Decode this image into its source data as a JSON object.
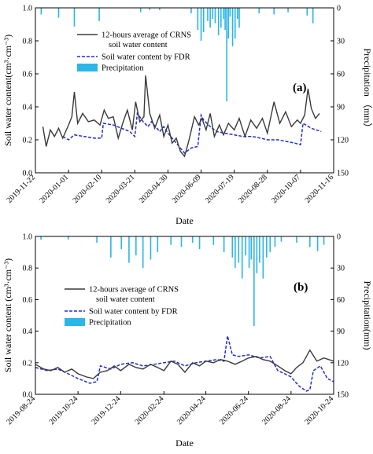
{
  "chart_data": [
    {
      "type": "line",
      "panel_label": "(a)",
      "xlabel": "Date",
      "ylabel": "Soil water content(cm³·cm⁻³)",
      "y2label": "Precipitation （mm）",
      "ylim": [
        0.0,
        1.0
      ],
      "y2lim": [
        0,
        150
      ],
      "y2_inverted": true,
      "xlim": [
        "2019-11-22",
        "2020-11-16"
      ],
      "xticks": [
        "2019-11-22",
        "2020-01-01",
        "2020-02-10",
        "2020-03-21",
        "2020-04-30",
        "2020-06-09",
        "2020-07-19",
        "2020-08-28",
        "2020-10-07",
        "2020-11-16"
      ],
      "yticks": [
        "0.0",
        "0.2",
        "0.4",
        "0.6",
        "0.8",
        "1.0"
      ],
      "y2ticks": [
        "0",
        "30",
        "60",
        "90",
        "120",
        "150"
      ],
      "legend_position": "top-left",
      "legend": [
        {
          "label": "12-hours average of CRNS",
          "label2": "soil water content",
          "style": "line",
          "color": "#3a3a3a"
        },
        {
          "label": "Soil water content by FDR",
          "style": "dashed",
          "color": "#1f2fd0"
        },
        {
          "label": "Precipitation",
          "style": "bar",
          "color": "#2ab6e6"
        }
      ],
      "series": [
        {
          "name": "12-hours average of CRNS soil water content",
          "type": "line",
          "color": "#3a3a3a",
          "x": [
            "2019-12-01",
            "2019-12-05",
            "2019-12-10",
            "2019-12-15",
            "2019-12-20",
            "2019-12-25",
            "2020-01-01",
            "2020-01-05",
            "2020-01-08",
            "2020-01-12",
            "2020-01-18",
            "2020-01-25",
            "2020-02-01",
            "2020-02-08",
            "2020-02-13",
            "2020-02-18",
            "2020-02-24",
            "2020-03-01",
            "2020-03-07",
            "2020-03-12",
            "2020-03-18",
            "2020-03-22",
            "2020-03-27",
            "2020-04-01",
            "2020-04-03",
            "2020-04-08",
            "2020-04-14",
            "2020-04-20",
            "2020-04-25",
            "2020-04-30",
            "2020-05-05",
            "2020-05-10",
            "2020-05-15",
            "2020-05-20",
            "2020-05-25",
            "2020-06-01",
            "2020-06-06",
            "2020-06-10",
            "2020-06-15",
            "2020-06-20",
            "2020-06-25",
            "2020-07-01",
            "2020-07-06",
            "2020-07-12",
            "2020-07-19",
            "2020-07-25",
            "2020-08-01",
            "2020-08-08",
            "2020-08-15",
            "2020-08-22",
            "2020-08-28",
            "2020-09-05",
            "2020-09-12",
            "2020-09-19",
            "2020-09-26",
            "2020-10-03",
            "2020-10-07",
            "2020-10-12",
            "2020-10-16",
            "2020-10-20",
            "2020-10-25",
            "2020-10-30"
          ],
          "y": [
            0.28,
            0.16,
            0.26,
            0.22,
            0.27,
            0.21,
            0.29,
            0.34,
            0.49,
            0.3,
            0.36,
            0.31,
            0.32,
            0.29,
            0.38,
            0.33,
            0.34,
            0.21,
            0.31,
            0.38,
            0.26,
            0.43,
            0.31,
            0.34,
            0.59,
            0.36,
            0.27,
            0.35,
            0.22,
            0.29,
            0.18,
            0.21,
            0.13,
            0.1,
            0.19,
            0.34,
            0.29,
            0.33,
            0.26,
            0.36,
            0.22,
            0.29,
            0.23,
            0.3,
            0.26,
            0.33,
            0.22,
            0.32,
            0.27,
            0.33,
            0.24,
            0.43,
            0.3,
            0.37,
            0.28,
            0.32,
            0.3,
            0.35,
            0.51,
            0.39,
            0.33,
            0.36
          ]
        },
        {
          "name": "Soil water content by FDR",
          "type": "dashed",
          "color": "#1f2fd0",
          "x": [
            "2019-12-25",
            "2020-01-01",
            "2020-01-08",
            "2020-01-20",
            "2020-02-01",
            "2020-02-10",
            "2020-02-12",
            "2020-02-24",
            "2020-03-05",
            "2020-03-15",
            "2020-03-21",
            "2020-03-24",
            "2020-03-31",
            "2020-04-06",
            "2020-04-10",
            "2020-04-20",
            "2020-04-25",
            "2020-04-30",
            "2020-05-10",
            "2020-05-20",
            "2020-05-28",
            "2020-06-05",
            "2020-06-09",
            "2020-06-12",
            "2020-06-20",
            "2020-06-28",
            "2020-07-08",
            "2020-07-19",
            "2020-07-30",
            "2020-08-10",
            "2020-08-20",
            "2020-08-28",
            "2020-09-10",
            "2020-09-20",
            "2020-09-30",
            "2020-10-07",
            "2020-10-10",
            "2020-10-20",
            "2020-11-01"
          ],
          "y": [
            0.22,
            0.2,
            0.23,
            0.22,
            0.21,
            0.21,
            0.3,
            0.29,
            0.27,
            0.25,
            0.22,
            0.36,
            0.31,
            0.28,
            0.31,
            0.25,
            0.28,
            0.24,
            0.18,
            0.12,
            0.15,
            0.16,
            0.35,
            0.32,
            0.28,
            0.25,
            0.24,
            0.23,
            0.22,
            0.22,
            0.21,
            0.2,
            0.2,
            0.19,
            0.18,
            0.17,
            0.3,
            0.27,
            0.25
          ]
        },
        {
          "name": "Precipitation",
          "type": "bar",
          "color": "#2ab6e6",
          "x": [
            "2019-11-29",
            "2019-12-20",
            "2020-01-08",
            "2020-02-07",
            "2020-03-28",
            "2020-04-08",
            "2020-04-20",
            "2020-05-28",
            "2020-06-05",
            "2020-06-09",
            "2020-06-12",
            "2020-06-17",
            "2020-06-20",
            "2020-06-23",
            "2020-06-26",
            "2020-06-30",
            "2020-07-03",
            "2020-07-06",
            "2020-07-08",
            "2020-07-10",
            "2020-07-12",
            "2020-07-14",
            "2020-07-17",
            "2020-07-20",
            "2020-07-23",
            "2020-07-25",
            "2020-08-18",
            "2020-09-05",
            "2020-09-22",
            "2020-10-15",
            "2020-10-22"
          ],
          "y": [
            6,
            9,
            17,
            12,
            4,
            2,
            2,
            5,
            20,
            30,
            22,
            12,
            18,
            10,
            14,
            25,
            18,
            10,
            20,
            85,
            28,
            8,
            35,
            28,
            10,
            18,
            5,
            6,
            4,
            7,
            14
          ]
        }
      ]
    },
    {
      "type": "line",
      "panel_label": "(b)",
      "xlabel": "Date",
      "ylabel": "Soil water content (cm³·cm⁻³)",
      "y2label": "Precipitation(mm)",
      "ylim": [
        0.0,
        1.0
      ],
      "y2lim": [
        0,
        150
      ],
      "y2_inverted": true,
      "xlim": [
        "2019-08-24",
        "2020-10-24"
      ],
      "xticks": [
        "2019-08-24",
        "2019-10-24",
        "2019-12-24",
        "2020-02-24",
        "2020-04-24",
        "2020-06-24",
        "2020-08-24",
        "2020-10-24"
      ],
      "yticks": [
        "0.0",
        "0.2",
        "0.4",
        "0.6",
        "0.8",
        "1.0"
      ],
      "y2ticks": [
        "0",
        "30",
        "60",
        "90",
        "120",
        "150"
      ],
      "legend_position": "center-left",
      "legend": [
        {
          "label": "12-hours average of CRNS",
          "label2": "soil water content",
          "style": "line",
          "color": "#3a3a3a"
        },
        {
          "label": "Soil water content by FDR",
          "style": "dashed",
          "color": "#1f2fd0"
        },
        {
          "label": "Precipitation",
          "style": "bar",
          "color": "#2ab6e6"
        }
      ],
      "series": [
        {
          "name": "12-hours average of CRNS soil water content",
          "type": "line",
          "color": "#3a3a3a",
          "x": [
            "2019-08-24",
            "2019-09-05",
            "2019-09-15",
            "2019-09-25",
            "2019-10-05",
            "2019-10-15",
            "2019-10-24",
            "2019-11-05",
            "2019-11-15",
            "2019-11-25",
            "2019-12-05",
            "2019-12-15",
            "2019-12-24",
            "2020-01-05",
            "2020-01-15",
            "2020-01-25",
            "2020-02-05",
            "2020-02-15",
            "2020-02-24",
            "2020-03-05",
            "2020-03-15",
            "2020-03-25",
            "2020-04-05",
            "2020-04-15",
            "2020-04-24",
            "2020-05-05",
            "2020-05-15",
            "2020-05-25",
            "2020-06-05",
            "2020-06-15",
            "2020-06-24",
            "2020-07-05",
            "2020-07-15",
            "2020-07-25",
            "2020-08-05",
            "2020-08-15",
            "2020-08-24",
            "2020-09-01",
            "2020-09-10",
            "2020-09-20",
            "2020-09-30",
            "2020-10-10",
            "2020-10-24"
          ],
          "y": [
            0.19,
            0.16,
            0.15,
            0.17,
            0.14,
            0.16,
            0.13,
            0.11,
            0.1,
            0.14,
            0.15,
            0.18,
            0.15,
            0.19,
            0.17,
            0.16,
            0.19,
            0.17,
            0.15,
            0.21,
            0.19,
            0.14,
            0.2,
            0.18,
            0.21,
            0.2,
            0.22,
            0.21,
            0.19,
            0.21,
            0.23,
            0.24,
            0.22,
            0.21,
            0.18,
            0.15,
            0.13,
            0.17,
            0.2,
            0.28,
            0.21,
            0.23,
            0.21
          ]
        },
        {
          "name": "Soil water content by FDR",
          "type": "dashed",
          "color": "#1f2fd0",
          "x": [
            "2019-08-24",
            "2019-09-10",
            "2019-09-25",
            "2019-10-10",
            "2019-10-24",
            "2019-11-10",
            "2019-11-20",
            "2019-11-25",
            "2019-12-10",
            "2019-12-24",
            "2020-01-10",
            "2020-01-25",
            "2020-02-10",
            "2020-02-24",
            "2020-03-10",
            "2020-03-25",
            "2020-04-10",
            "2020-04-24",
            "2020-05-10",
            "2020-05-20",
            "2020-05-25",
            "2020-06-01",
            "2020-06-10",
            "2020-06-24",
            "2020-07-10",
            "2020-07-25",
            "2020-08-05",
            "2020-08-15",
            "2020-08-24",
            "2020-09-05",
            "2020-09-15",
            "2020-09-20",
            "2020-09-25",
            "2020-10-05",
            "2020-10-15",
            "2020-10-24"
          ],
          "y": [
            0.17,
            0.15,
            0.16,
            0.13,
            0.1,
            0.07,
            0.08,
            0.18,
            0.16,
            0.19,
            0.2,
            0.18,
            0.19,
            0.2,
            0.21,
            0.18,
            0.2,
            0.21,
            0.22,
            0.21,
            0.37,
            0.25,
            0.24,
            0.25,
            0.23,
            0.24,
            0.15,
            0.13,
            0.11,
            0.05,
            0.02,
            0.03,
            0.15,
            0.18,
            0.1,
            0.08
          ]
        },
        {
          "name": "Precipitation",
          "type": "bar",
          "color": "#2ab6e6",
          "x": [
            "2019-09-01",
            "2019-10-10",
            "2019-11-20",
            "2019-12-10",
            "2019-12-25",
            "2020-01-05",
            "2020-01-15",
            "2020-01-25",
            "2020-02-05",
            "2020-02-15",
            "2020-03-05",
            "2020-03-20",
            "2020-04-05",
            "2020-04-15",
            "2020-05-05",
            "2020-05-20",
            "2020-06-01",
            "2020-06-05",
            "2020-06-10",
            "2020-06-15",
            "2020-06-20",
            "2020-06-25",
            "2020-06-28",
            "2020-07-02",
            "2020-07-06",
            "2020-07-10",
            "2020-07-15",
            "2020-07-20",
            "2020-07-25",
            "2020-08-01",
            "2020-08-10",
            "2020-09-01",
            "2020-09-20",
            "2020-10-01",
            "2020-10-10"
          ],
          "y": [
            3,
            3,
            6,
            20,
            12,
            25,
            18,
            30,
            22,
            15,
            8,
            10,
            6,
            12,
            8,
            15,
            20,
            30,
            25,
            40,
            18,
            30,
            22,
            85,
            35,
            25,
            40,
            20,
            15,
            10,
            5,
            6,
            10,
            14,
            8
          ]
        }
      ]
    }
  ]
}
